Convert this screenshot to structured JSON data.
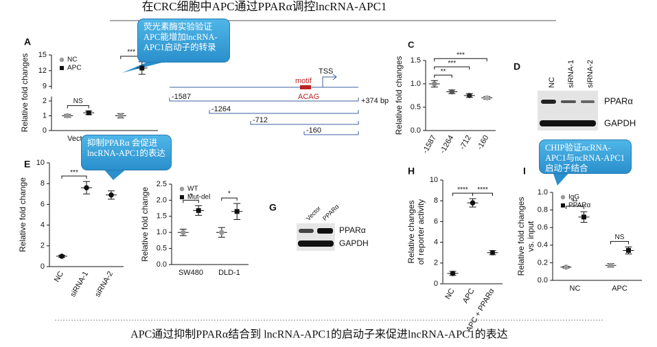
{
  "title": "在CRC细胞中APC通过PPARα调控lncRNA-APC1",
  "caption": "APC通过抑制PPARα结合到 lncRNA-APC1的启动子来促进lncRNA-APC1的表达",
  "callouts": [
    "荧光素酶实验验证APC能增加lncRNA-APC1启动子的转录",
    "抑制PPARα 会促进lncRNA-APC1的表达",
    "CHIP验证ncRNA-APC1与ncRNA-APC1启动子结合"
  ],
  "panels": [
    "A",
    "C",
    "D",
    "E",
    "G",
    "H",
    "I"
  ],
  "diagram": {
    "motif": "motif",
    "site": "ACAG",
    "tss": "TSS",
    "constructs": [
      "-1587",
      "-1264",
      "-712",
      "-160"
    ],
    "end": "+374 bp"
  },
  "blots": [
    {
      "lanes": [
        "NC",
        "siRNA-1",
        "siRNA-2"
      ],
      "bands": [
        "PPARα",
        "GAPDH"
      ]
    },
    {
      "lanes": [
        "Vector",
        "PPARα"
      ],
      "bands": [
        "PPARα",
        "GAPDH"
      ]
    }
  ],
  "chart_data": [
    {
      "type": "dot",
      "ylabel": "Relative fold changes",
      "categories": [
        "Vector",
        null
      ],
      "series": [
        {
          "name": "NC",
          "color": "#999999",
          "values": [
            1.0,
            1.0
          ],
          "errors": [
            0.1,
            0.15
          ]
        },
        {
          "name": "APC",
          "color": "#111111",
          "values": [
            1.2,
            12.5
          ],
          "errors": [
            0.12,
            1.2
          ]
        }
      ],
      "ylim": [
        0,
        15
      ],
      "yticks": [
        0,
        1,
        2,
        9,
        12,
        15
      ],
      "axis_break": [
        2.3,
        8.5
      ],
      "brackets": [
        {
          "label": "NS",
          "category": 0
        },
        {
          "label": "***",
          "category": 1
        }
      ]
    },
    {
      "type": "dot",
      "ylabel": "Relative fold changes",
      "categories": [
        "-1587",
        "-1264",
        "-712",
        "-160"
      ],
      "values": [
        1.0,
        0.83,
        0.75,
        0.7
      ],
      "errors": [
        0.07,
        0.04,
        0.04,
        0.03
      ],
      "colors": [
        "#888888",
        "#555555",
        "#222222",
        "#aaaaaa"
      ],
      "ylim": [
        0,
        1.5
      ],
      "yticks": [
        {
          "value": 0,
          "label": "0.0"
        },
        {
          "value": 0.5,
          "label": "0.5"
        },
        {
          "value": 1,
          "label": "1.0"
        },
        {
          "value": 1.5,
          "label": "1.5"
        }
      ],
      "xlabel_rotation": -60,
      "brackets": [
        {
          "label": "**",
          "between": [
            0,
            1
          ]
        },
        {
          "label": "***",
          "between": [
            0,
            2
          ]
        },
        {
          "label": "***",
          "between": [
            0,
            3
          ]
        }
      ]
    },
    {
      "type": "dot",
      "ylabel": "Relative fold change",
      "categories": [
        "NC",
        "siRNA-1",
        "siRNA-2"
      ],
      "values": [
        1.0,
        7.6,
        6.9
      ],
      "errors": [
        0.1,
        0.6,
        0.4
      ],
      "color": "#111111",
      "ylim": [
        0,
        10
      ],
      "yticks": [
        0,
        2,
        4,
        6,
        8,
        10
      ],
      "xlabel_rotation": -60,
      "brackets": [
        {
          "label": "***",
          "between": [
            0,
            1
          ]
        }
      ]
    },
    {
      "type": "dot",
      "ylabel": "Relative fold change",
      "categories": [
        "SW480",
        "DLD-1"
      ],
      "series": [
        {
          "name": "WT",
          "color": "#999999",
          "values": [
            1.0,
            1.0
          ],
          "errors": [
            0.1,
            0.15
          ]
        },
        {
          "name": "Mut-del",
          "color": "#111111",
          "values": [
            1.68,
            1.65
          ],
          "errors": [
            0.15,
            0.25
          ]
        }
      ],
      "ylim": [
        0,
        2.5
      ],
      "yticks": [
        {
          "value": 0,
          "label": "0.0"
        },
        {
          "value": 0.5,
          "label": "0.5"
        },
        {
          "value": 1,
          "label": "1.0"
        },
        {
          "value": 1.5,
          "label": "1.5"
        },
        {
          "value": 2,
          "label": "2.0"
        },
        {
          "value": 2.5,
          "label": "2.5"
        }
      ],
      "brackets": [
        {
          "label": "*",
          "category": 0
        },
        {
          "label": "*",
          "category": 1
        }
      ]
    },
    {
      "type": "dot",
      "ylabel": [
        "Relative changes",
        "of reporter activity"
      ],
      "categories": [
        "NC",
        "APC",
        "APC + PPARα"
      ],
      "values": [
        1.0,
        7.8,
        3.0
      ],
      "errors": [
        0.2,
        0.4,
        0.2
      ],
      "color": "#111111",
      "ylim": [
        0,
        10
      ],
      "yticks": [
        0,
        2,
        4,
        6,
        8,
        10
      ],
      "xlabel_rotation": -60,
      "brackets": [
        {
          "label": "****",
          "between": [
            0,
            1
          ]
        },
        {
          "label": "****",
          "between": [
            1,
            2
          ]
        }
      ]
    },
    {
      "type": "dot",
      "ylabel": [
        "Relative fold changes",
        "vs. input"
      ],
      "categories": [
        "NC",
        "APC"
      ],
      "series": [
        {
          "name": "IgG",
          "color": "#999999",
          "values": [
            0.15,
            0.17
          ],
          "errors": [
            0.01,
            0.02
          ]
        },
        {
          "name": "PPARα",
          "color": "#111111",
          "values": [
            0.72,
            0.34
          ],
          "errors": [
            0.06,
            0.04
          ]
        }
      ],
      "ylim": [
        0,
        1
      ],
      "yticks": [
        {
          "value": 0,
          "label": "0.0"
        },
        {
          "value": 0.2,
          "label": "0.2"
        },
        {
          "value": 0.4,
          "label": "0.4"
        },
        {
          "value": 0.6,
          "label": "0.6"
        },
        {
          "value": 0.8,
          "label": "0.8"
        },
        {
          "value": 1,
          "label": "1.0"
        }
      ],
      "brackets": [
        {
          "label": "**",
          "category": 0
        },
        {
          "label": "NS",
          "category": 1
        }
      ]
    }
  ]
}
